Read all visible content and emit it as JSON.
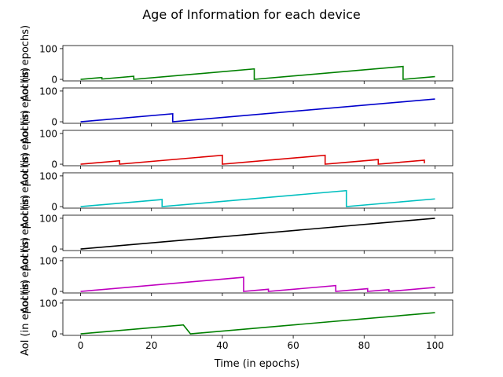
{
  "figure": {
    "title": "Age of Information for each device",
    "xlabel": "Time (in epochs)",
    "ylabel": "AoI (in epochs)"
  },
  "chart_data": {
    "type": "line",
    "title": "Age of Information for each device",
    "xlabel": "Time (in epochs)",
    "ylabel": "AoI (in epochs)",
    "xlim": [
      -5,
      105
    ],
    "ylim": [
      -5,
      110
    ],
    "xticks": [
      0,
      20,
      40,
      60,
      80,
      100
    ],
    "yticks": [
      0,
      100
    ],
    "grid": false,
    "series": [
      {
        "color": "#008000",
        "points": [
          [
            0,
            0
          ],
          [
            6,
            6
          ],
          [
            6,
            1
          ],
          [
            15,
            10
          ],
          [
            15,
            0
          ],
          [
            49,
            34
          ],
          [
            49,
            0
          ],
          [
            91,
            42
          ],
          [
            91,
            0
          ],
          [
            100,
            9
          ]
        ]
      },
      {
        "color": "#0000cc",
        "points": [
          [
            0,
            0
          ],
          [
            26,
            26
          ],
          [
            26,
            0
          ],
          [
            100,
            74
          ]
        ]
      },
      {
        "color": "#dd0000",
        "points": [
          [
            0,
            0
          ],
          [
            11,
            11
          ],
          [
            11,
            0
          ],
          [
            40,
            29
          ],
          [
            40,
            0
          ],
          [
            69,
            29
          ],
          [
            69,
            0
          ],
          [
            84,
            15
          ],
          [
            84,
            0
          ],
          [
            97,
            13
          ],
          [
            97,
            3
          ]
        ]
      },
      {
        "color": "#00bfbf",
        "points": [
          [
            0,
            0
          ],
          [
            23,
            23
          ],
          [
            23,
            0
          ],
          [
            75,
            52
          ],
          [
            75,
            0
          ],
          [
            100,
            25
          ]
        ]
      },
      {
        "color": "#000000",
        "points": [
          [
            0,
            0
          ],
          [
            100,
            100
          ]
        ]
      },
      {
        "color": "#bf00bf",
        "points": [
          [
            0,
            0
          ],
          [
            46,
            46
          ],
          [
            46,
            0
          ],
          [
            53,
            7
          ],
          [
            53,
            0
          ],
          [
            72,
            19
          ],
          [
            72,
            0
          ],
          [
            81,
            9
          ],
          [
            81,
            0
          ],
          [
            87,
            6
          ],
          [
            87,
            0
          ],
          [
            100,
            13
          ]
        ]
      },
      {
        "color": "#008000",
        "points": [
          [
            0,
            0
          ],
          [
            29,
            29
          ],
          [
            31,
            0
          ],
          [
            100,
            69
          ]
        ]
      }
    ]
  }
}
